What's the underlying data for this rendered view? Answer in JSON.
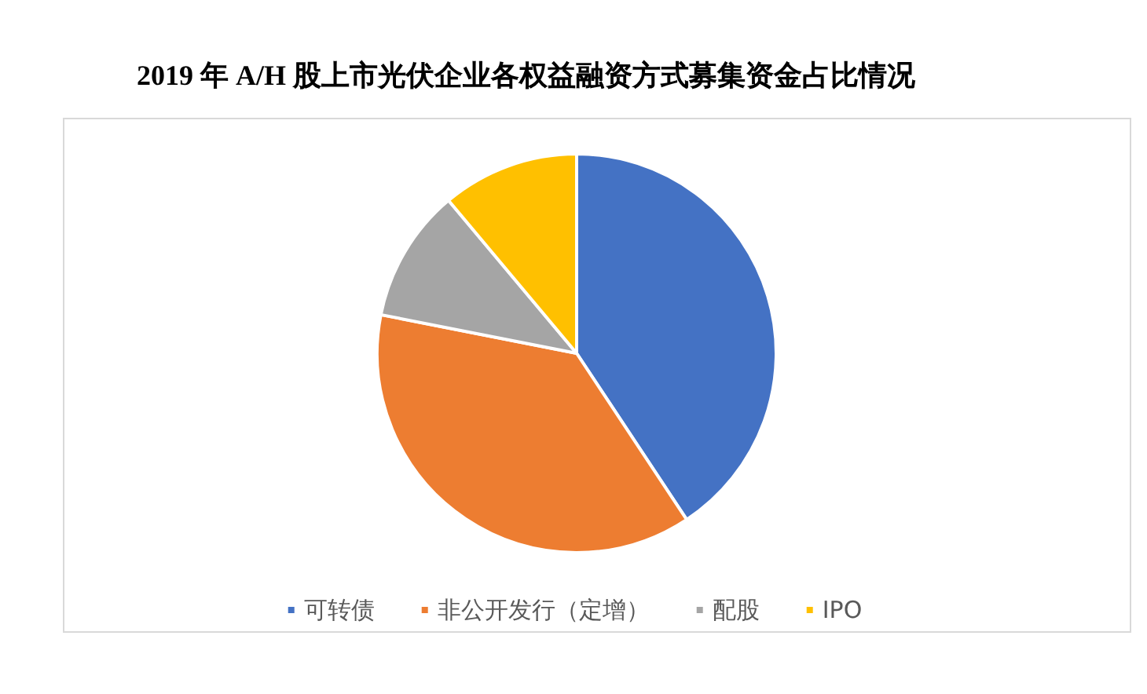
{
  "chart_data": {
    "type": "pie",
    "title": "2019 年 A/H 股上市光伏企业各权益融资方式募集资金占比情况",
    "categories": [
      "可转债",
      "非公开发行（定增）",
      "配股",
      "IPO"
    ],
    "values": [
      40.7,
      37.4,
      10.8,
      11.1
    ],
    "colors": [
      "#4472c4",
      "#ed7d31",
      "#a5a5a5",
      "#ffc000"
    ],
    "legend": "bottom"
  }
}
